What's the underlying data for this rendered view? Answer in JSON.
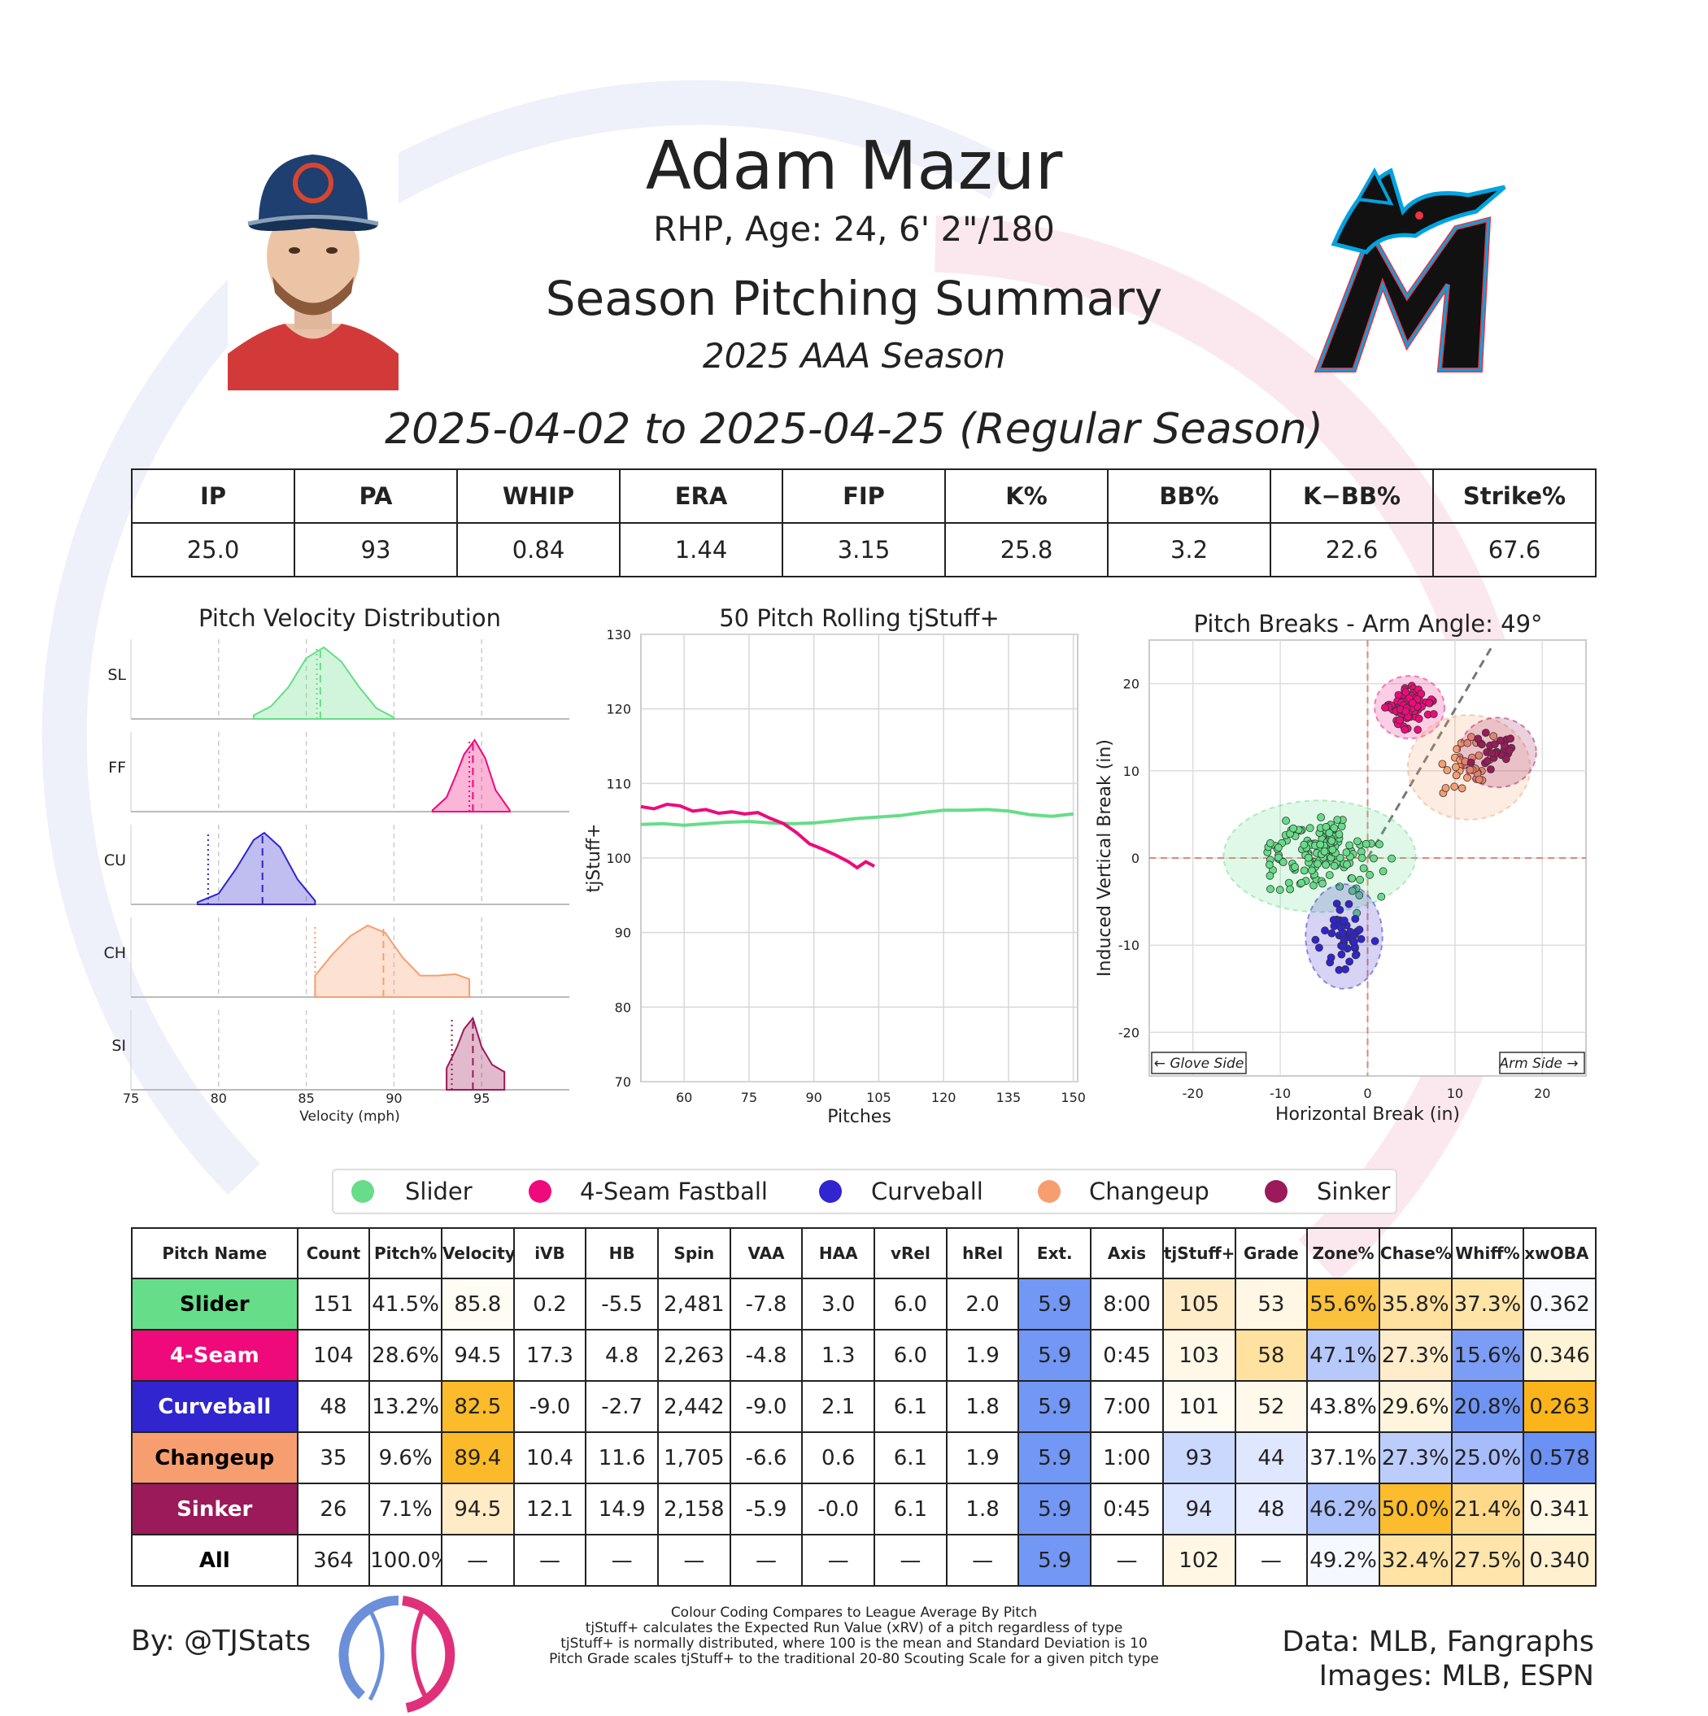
{
  "header": {
    "player_name": "Adam Mazur",
    "player_info": "RHP, Age: 24, 6' 2\"/180",
    "report_title": "Season Pitching Summary",
    "season_label": "2025 AAA Season",
    "date_range": "2025-04-02 to 2025-04-25 (Regular Season)"
  },
  "images": {
    "player_photo": "player-headshot",
    "team_logo": "marlins-logo",
    "tjstats_logo": "tjstats-logo"
  },
  "season_stats": {
    "headers": [
      "IP",
      "PA",
      "WHIP",
      "ERA",
      "FIP",
      "K%",
      "BB%",
      "K−BB%",
      "Strike%"
    ],
    "values": [
      "25.0",
      "93",
      "0.84",
      "1.44",
      "3.15",
      "25.8",
      "3.2",
      "22.6",
      "67.6"
    ]
  },
  "legend": [
    {
      "label": "Slider",
      "color": "#66dd88"
    },
    {
      "label": "4-Seam Fastball",
      "color": "#ee0a7b"
    },
    {
      "label": "Curveball",
      "color": "#3025ce"
    },
    {
      "label": "Changeup",
      "color": "#f79e70"
    },
    {
      "label": "Sinker",
      "color": "#9a1a5a"
    }
  ],
  "chart_data": [
    {
      "type": "area",
      "title": "Pitch Velocity Distribution",
      "xlabel": "Velocity (mph)",
      "xlim": [
        75,
        100
      ],
      "xticks": [
        "75",
        "80",
        "85",
        "90",
        "95"
      ],
      "grid": true,
      "series": [
        {
          "label": "SL",
          "color": "#66dd88",
          "range": [
            82,
            90
          ],
          "mean": 85.8,
          "league_avg": 85.6,
          "density": [
            [
              82,
              0.05
            ],
            [
              83,
              0.18
            ],
            [
              84,
              0.45
            ],
            [
              85,
              0.85
            ],
            [
              86,
              1.0
            ],
            [
              87,
              0.8
            ],
            [
              88,
              0.45
            ],
            [
              89,
              0.15
            ],
            [
              90,
              0.02
            ]
          ]
        },
        {
          "label": "FF",
          "color": "#ee0a7b",
          "range": [
            92.2,
            96.6
          ],
          "mean": 94.5,
          "league_avg": 94.3,
          "density": [
            [
              92.2,
              0.02
            ],
            [
              93,
              0.2
            ],
            [
              93.6,
              0.55
            ],
            [
              94,
              0.8
            ],
            [
              94.6,
              1.0
            ],
            [
              95.2,
              0.75
            ],
            [
              95.8,
              0.3
            ],
            [
              96.6,
              0.02
            ]
          ]
        },
        {
          "label": "CU",
          "color": "#3025ce",
          "range": [
            78.8,
            85.5
          ],
          "mean": 82.5,
          "league_avg": 79.4,
          "density": [
            [
              78.8,
              0.03
            ],
            [
              80,
              0.15
            ],
            [
              81,
              0.5
            ],
            [
              82,
              0.9
            ],
            [
              82.6,
              1.0
            ],
            [
              83.5,
              0.8
            ],
            [
              84.5,
              0.35
            ],
            [
              85.5,
              0.05
            ]
          ]
        },
        {
          "label": "CH",
          "color": "#f79e70",
          "range": [
            85.5,
            94.3
          ],
          "mean": 89.4,
          "league_avg": 85.5,
          "density": [
            [
              85.5,
              0.3
            ],
            [
              86.5,
              0.6
            ],
            [
              87.5,
              0.85
            ],
            [
              88.5,
              1.0
            ],
            [
              89.5,
              0.9
            ],
            [
              90.5,
              0.55
            ],
            [
              91.5,
              0.3
            ],
            [
              92.5,
              0.3
            ],
            [
              93.5,
              0.32
            ],
            [
              94.3,
              0.25
            ]
          ]
        },
        {
          "label": "SI",
          "color": "#9a1a5a",
          "range": [
            93.0,
            96.3
          ],
          "mean": 94.5,
          "league_avg": 93.3,
          "density": [
            [
              93,
              0.3
            ],
            [
              93.6,
              0.6
            ],
            [
              94,
              0.85
            ],
            [
              94.5,
              1.0
            ],
            [
              95,
              0.6
            ],
            [
              95.6,
              0.35
            ],
            [
              96.3,
              0.25
            ]
          ]
        }
      ]
    },
    {
      "type": "line",
      "title": "50 Pitch Rolling tjStuff+",
      "xlabel": "Pitches",
      "ylabel": "tjStuff+",
      "xlim": [
        50,
        151
      ],
      "ylim": [
        70,
        130
      ],
      "xticks": [
        "60",
        "75",
        "90",
        "105",
        "120",
        "135",
        "150"
      ],
      "yticks": [
        "70",
        "80",
        "90",
        "100",
        "110",
        "120",
        "130"
      ],
      "grid": true,
      "series": [
        {
          "name": "Slider",
          "color": "#66dd88",
          "x": [
            50,
            55,
            60,
            65,
            70,
            75,
            80,
            85,
            90,
            95,
            100,
            105,
            110,
            115,
            120,
            125,
            130,
            135,
            140,
            145,
            150
          ],
          "y": [
            104.5,
            104.6,
            104.4,
            104.6,
            104.8,
            104.9,
            104.7,
            104.6,
            104.7,
            105.0,
            105.3,
            105.5,
            105.7,
            106.1,
            106.4,
            106.4,
            106.5,
            106.3,
            105.8,
            105.6,
            105.9
          ]
        },
        {
          "name": "4-Seam Fastball",
          "color": "#ee0a7b",
          "x": [
            50,
            53,
            56,
            59,
            62,
            65,
            68,
            71,
            74,
            77,
            80,
            83,
            86,
            89,
            92,
            95,
            98,
            100,
            102,
            104
          ],
          "y": [
            106.9,
            106.6,
            107.2,
            107.0,
            106.3,
            106.5,
            106.0,
            106.2,
            105.9,
            106.1,
            105.3,
            104.6,
            103.4,
            101.9,
            101.2,
            100.4,
            99.5,
            98.7,
            99.5,
            98.9
          ]
        }
      ]
    },
    {
      "type": "scatter",
      "title": "Pitch Breaks - Arm Angle: 49°",
      "xlabel": "Horizontal Break (in)",
      "ylabel": "Induced Vertical Break (in)",
      "xlim": [
        -25,
        25
      ],
      "ylim": [
        -25,
        25
      ],
      "xticks": [
        "-20",
        "-10",
        "0",
        "10",
        "20"
      ],
      "yticks": [
        "-20",
        "-10",
        "0",
        "10",
        "20"
      ],
      "corner_labels": {
        "left": "← Glove Side",
        "right": "Arm Side →"
      },
      "grid": true,
      "arm_angle_deg": 49,
      "series": [
        {
          "name": "Slider",
          "color": "#66dd88",
          "center": [
            -5.5,
            0.2
          ],
          "spread": [
            5.5,
            3.2
          ],
          "count": 151
        },
        {
          "name": "4-Seam Fastball",
          "color": "#ee0a7b",
          "center": [
            4.8,
            17.3
          ],
          "spread": [
            2.0,
            1.8
          ],
          "count": 104
        },
        {
          "name": "Curveball",
          "color": "#3025ce",
          "center": [
            -2.7,
            -9.0
          ],
          "spread": [
            2.2,
            3.0
          ],
          "count": 48
        },
        {
          "name": "Changeup",
          "color": "#f79e70",
          "center": [
            11.6,
            10.4
          ],
          "spread": [
            3.5,
            3.0
          ],
          "count": 35
        },
        {
          "name": "Sinker",
          "color": "#9a1a5a",
          "center": [
            14.9,
            12.1
          ],
          "spread": [
            2.2,
            2.0
          ],
          "count": 26
        }
      ]
    }
  ],
  "pitch_table": {
    "headers": [
      "Pitch Name",
      "Count",
      "Pitch%",
      "Velocity",
      "iVB",
      "HB",
      "Spin",
      "VAA",
      "HAA",
      "vRel",
      "hRel",
      "Ext.",
      "Axis",
      "tjStuff+",
      "Grade",
      "Zone%",
      "Chase%",
      "Whiff%",
      "xwOBA Contact"
    ],
    "rows": [
      {
        "name": "Slider",
        "color": "#66dd88",
        "text_color": "#000000",
        "cells": [
          "151",
          "41.5%",
          "85.8",
          "0.2",
          "-5.5",
          "2,481",
          "-7.8",
          "3.0",
          "6.0",
          "2.0",
          "5.9",
          "8:00",
          "105",
          "53",
          "55.6%",
          "35.8%",
          "37.3%",
          "0.362"
        ],
        "colors": [
          "#ffffff",
          "#ffffff",
          "#fffcf3",
          "#ffffff",
          "#ffffff",
          "#ffffff",
          "#ffffff",
          "#ffffff",
          "#ffffff",
          "#ffffff",
          "#7297f5",
          "#ffffff",
          "#ffecc6",
          "#fff7e4",
          "#fbc03c",
          "#ffe09d",
          "#ffe4a8",
          "#f8faff"
        ]
      },
      {
        "name": "4-Seam",
        "color": "#ee0a7b",
        "text_color": "#ffffff",
        "cells": [
          "104",
          "28.6%",
          "94.5",
          "17.3",
          "4.8",
          "2,263",
          "-4.8",
          "1.3",
          "6.0",
          "1.9",
          "5.9",
          "0:45",
          "103",
          "58",
          "47.1%",
          "27.3%",
          "15.6%",
          "0.346"
        ],
        "colors": [
          "#ffffff",
          "#ffffff",
          "#ffffff",
          "#ffffff",
          "#ffffff",
          "#ffffff",
          "#ffffff",
          "#ffffff",
          "#ffffff",
          "#ffffff",
          "#7297f5",
          "#ffffff",
          "#fff8e6",
          "#ffe1a0",
          "#b7c8fb",
          "#ffeccb",
          "#7b9df6",
          "#fff3d6"
        ]
      },
      {
        "name": "Curveball",
        "color": "#3025ce",
        "text_color": "#ffffff",
        "cells": [
          "48",
          "13.2%",
          "82.5",
          "-9.0",
          "-2.7",
          "2,442",
          "-9.0",
          "2.1",
          "6.1",
          "1.8",
          "5.9",
          "7:00",
          "101",
          "52",
          "43.8%",
          "29.6%",
          "20.8%",
          "0.263"
        ],
        "colors": [
          "#ffffff",
          "#ffffff",
          "#fbbb2a",
          "#ffffff",
          "#ffffff",
          "#ffffff",
          "#ffffff",
          "#ffffff",
          "#ffffff",
          "#ffffff",
          "#7297f5",
          "#ffffff",
          "#fffcf3",
          "#fff9eb",
          "#ffffff",
          "#fff5de",
          "#6f95f4",
          "#fbb41a"
        ]
      },
      {
        "name": "Changeup",
        "color": "#f79e70",
        "text_color": "#000000",
        "cells": [
          "35",
          "9.6%",
          "89.4",
          "10.4",
          "11.6",
          "1,705",
          "-6.6",
          "0.6",
          "6.1",
          "1.9",
          "5.9",
          "1:00",
          "93",
          "44",
          "37.1%",
          "27.3%",
          "25.0%",
          "0.578"
        ],
        "colors": [
          "#ffffff",
          "#ffffff",
          "#fbba29",
          "#ffffff",
          "#ffffff",
          "#ffffff",
          "#ffffff",
          "#ffffff",
          "#ffffff",
          "#ffffff",
          "#7297f5",
          "#ffffff",
          "#cbd8fd",
          "#dfe7ff",
          "#ffffff",
          "#bccdfc",
          "#a7bcfa",
          "#6b91f4"
        ]
      },
      {
        "name": "Sinker",
        "color": "#9a1a5a",
        "text_color": "#ffffff",
        "cells": [
          "26",
          "7.1%",
          "94.5",
          "12.1",
          "14.9",
          "2,158",
          "-5.9",
          "-0.0",
          "6.1",
          "1.8",
          "5.9",
          "0:45",
          "94",
          "48",
          "46.2%",
          "50.0%",
          "21.4%",
          "0.341"
        ],
        "colors": [
          "#ffffff",
          "#ffffff",
          "#ffecc6",
          "#ffffff",
          "#ffffff",
          "#ffffff",
          "#ffffff",
          "#ffffff",
          "#ffffff",
          "#ffffff",
          "#7297f5",
          "#ffffff",
          "#dce5ff",
          "#e8eeff",
          "#adc1fa",
          "#fbbc2d",
          "#ffd98a",
          "#fff8e6"
        ]
      },
      {
        "name": "All",
        "color": "#ffffff",
        "text_color": "#000000",
        "cells": [
          "364",
          "100.0%",
          "—",
          "—",
          "—",
          "—",
          "—",
          "—",
          "—",
          "—",
          "5.9",
          "—",
          "102",
          "—",
          "49.2%",
          "32.4%",
          "27.5%",
          "0.340"
        ],
        "colors": [
          "#ffffff",
          "#ffffff",
          "#ffffff",
          "#ffffff",
          "#ffffff",
          "#ffffff",
          "#ffffff",
          "#ffffff",
          "#ffffff",
          "#ffffff",
          "#7297f5",
          "#ffffff",
          "#fff7e3",
          "#ffffff",
          "#f6f8ff",
          "#ffe3a5",
          "#ffe5ab",
          "#fff0d0"
        ]
      }
    ]
  },
  "footer": {
    "credit_left": "By: @TJStats",
    "credit_right_1": "Data: MLB, Fangraphs",
    "credit_right_2": "Images: MLB, ESPN",
    "notes": [
      "Colour Coding Compares to League Average By Pitch",
      "tjStuff+ calculates the Expected Run Value (xRV) of a pitch regardless of type",
      "tjStuff+ is normally distributed, where 100 is the mean and Standard Deviation is 10",
      "Pitch Grade scales tjStuff+ to the traditional 20-80 Scouting Scale for a given pitch type"
    ]
  }
}
